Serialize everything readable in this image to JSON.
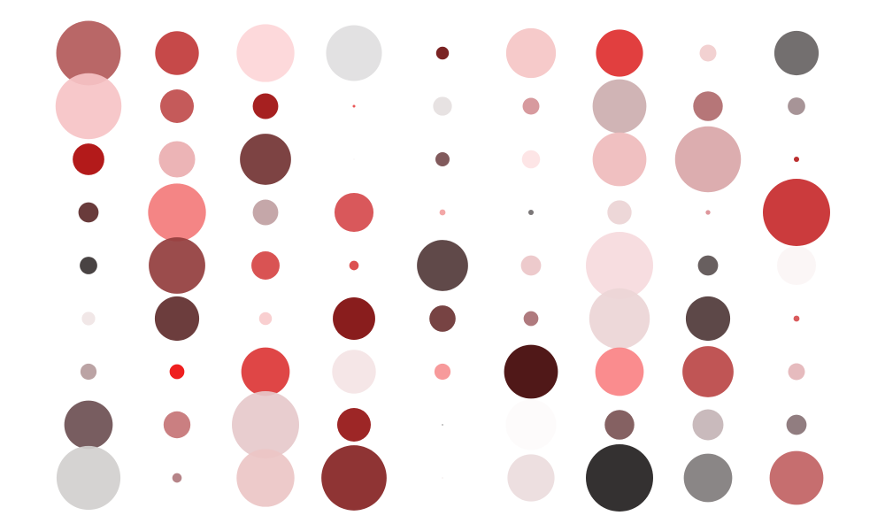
{
  "chart_data": {
    "type": "scatter",
    "title": "",
    "xlabel": "",
    "ylabel": "",
    "grid": false,
    "legend": "none",
    "columns": 9,
    "rows": 9,
    "cells": [
      {
        "col": 1,
        "row": 1,
        "size": 0.96,
        "color": "#b35a5a"
      },
      {
        "col": 2,
        "row": 1,
        "size": 0.65,
        "color": "#c13a3a"
      },
      {
        "col": 3,
        "row": 1,
        "size": 0.86,
        "color": "#fdd6d8"
      },
      {
        "col": 4,
        "row": 1,
        "size": 0.83,
        "color": "#e0dedf"
      },
      {
        "col": 5,
        "row": 1,
        "size": 0.19,
        "color": "#6f1010"
      },
      {
        "col": 6,
        "row": 1,
        "size": 0.74,
        "color": "#f5c5c6"
      },
      {
        "col": 7,
        "row": 1,
        "size": 0.7,
        "color": "#de2f2f"
      },
      {
        "col": 8,
        "row": 1,
        "size": 0.25,
        "color": "#f1cdcd"
      },
      {
        "col": 9,
        "row": 1,
        "size": 0.66,
        "color": "#676363"
      },
      {
        "col": 1,
        "row": 2,
        "size": 0.98,
        "color": "#f6c3c5"
      },
      {
        "col": 2,
        "row": 2,
        "size": 0.5,
        "color": "#c04c4c"
      },
      {
        "col": 3,
        "row": 2,
        "size": 0.38,
        "color": "#9e0d0d"
      },
      {
        "col": 4,
        "row": 2,
        "size": 0.04,
        "color": "#e84848"
      },
      {
        "col": 5,
        "row": 2,
        "size": 0.28,
        "color": "#e5dfe0"
      },
      {
        "col": 6,
        "row": 2,
        "size": 0.25,
        "color": "#d49196"
      },
      {
        "col": 7,
        "row": 2,
        "size": 0.8,
        "color": "#ccaeaf"
      },
      {
        "col": 8,
        "row": 2,
        "size": 0.44,
        "color": "#b06a6d"
      },
      {
        "col": 9,
        "row": 2,
        "size": 0.26,
        "color": "#9f8b8e"
      },
      {
        "col": 1,
        "row": 3,
        "size": 0.47,
        "color": "#ad0606"
      },
      {
        "col": 2,
        "row": 3,
        "size": 0.54,
        "color": "#eaaeb0"
      },
      {
        "col": 3,
        "row": 3,
        "size": 0.76,
        "color": "#723333"
      },
      {
        "col": 4,
        "row": 3,
        "size": 0.02,
        "color": "#f6f2f2"
      },
      {
        "col": 5,
        "row": 3,
        "size": 0.21,
        "color": "#764c4e"
      },
      {
        "col": 6,
        "row": 3,
        "size": 0.27,
        "color": "#fde3e4"
      },
      {
        "col": 7,
        "row": 3,
        "size": 0.8,
        "color": "#efbbbc"
      },
      {
        "col": 8,
        "row": 3,
        "size": 0.98,
        "color": "#d9a6a8"
      },
      {
        "col": 9,
        "row": 3,
        "size": 0.08,
        "color": "#b51d1d"
      },
      {
        "col": 1,
        "row": 4,
        "size": 0.3,
        "color": "#5c2a2a"
      },
      {
        "col": 2,
        "row": 4,
        "size": 0.86,
        "color": "#f37b7b"
      },
      {
        "col": 3,
        "row": 4,
        "size": 0.38,
        "color": "#c09fa2"
      },
      {
        "col": 4,
        "row": 4,
        "size": 0.58,
        "color": "#d64a4d"
      },
      {
        "col": 5,
        "row": 4,
        "size": 0.09,
        "color": "#f2a0a0"
      },
      {
        "col": 6,
        "row": 4,
        "size": 0.08,
        "color": "#706b6c"
      },
      {
        "col": 7,
        "row": 4,
        "size": 0.36,
        "color": "#ebd4d5"
      },
      {
        "col": 8,
        "row": 4,
        "size": 0.07,
        "color": "#db8d92"
      },
      {
        "col": 9,
        "row": 4,
        "size": 1.0,
        "color": "#c72a2c"
      },
      {
        "col": 1,
        "row": 5,
        "size": 0.26,
        "color": "#393333"
      },
      {
        "col": 2,
        "row": 5,
        "size": 0.84,
        "color": "#933d3d"
      },
      {
        "col": 3,
        "row": 5,
        "size": 0.42,
        "color": "#d64444"
      },
      {
        "col": 4,
        "row": 5,
        "size": 0.14,
        "color": "#d94242"
      },
      {
        "col": 5,
        "row": 5,
        "size": 0.76,
        "color": "#53393a"
      },
      {
        "col": 6,
        "row": 5,
        "size": 0.3,
        "color": "#ebc6c8"
      },
      {
        "col": 7,
        "row": 5,
        "size": 1.0,
        "color": "#f6dadd"
      },
      {
        "col": 8,
        "row": 5,
        "size": 0.3,
        "color": "#5b5151"
      },
      {
        "col": 9,
        "row": 5,
        "size": 0.58,
        "color": "#fbf5f5"
      },
      {
        "col": 1,
        "row": 6,
        "size": 0.2,
        "color": "#f0e5e5"
      },
      {
        "col": 2,
        "row": 6,
        "size": 0.66,
        "color": "#5f2c2c"
      },
      {
        "col": 3,
        "row": 6,
        "size": 0.19,
        "color": "#f9cbcc"
      },
      {
        "col": 4,
        "row": 6,
        "size": 0.63,
        "color": "#7f0a0a"
      },
      {
        "col": 5,
        "row": 6,
        "size": 0.39,
        "color": "#6b3333"
      },
      {
        "col": 6,
        "row": 6,
        "size": 0.22,
        "color": "#a86f73"
      },
      {
        "col": 7,
        "row": 6,
        "size": 0.9,
        "color": "#ecd5d6"
      },
      {
        "col": 8,
        "row": 6,
        "size": 0.66,
        "color": "#4f3838"
      },
      {
        "col": 9,
        "row": 6,
        "size": 0.09,
        "color": "#d64d4f"
      },
      {
        "col": 1,
        "row": 7,
        "size": 0.24,
        "color": "#b59b9c"
      },
      {
        "col": 2,
        "row": 7,
        "size": 0.22,
        "color": "#ee0c0c"
      },
      {
        "col": 3,
        "row": 7,
        "size": 0.72,
        "color": "#dc3636"
      },
      {
        "col": 4,
        "row": 7,
        "size": 0.65,
        "color": "#f4e4e5"
      },
      {
        "col": 5,
        "row": 7,
        "size": 0.24,
        "color": "#f69193"
      },
      {
        "col": 6,
        "row": 7,
        "size": 0.8,
        "color": "#410404"
      },
      {
        "col": 7,
        "row": 7,
        "size": 0.72,
        "color": "#fa8284"
      },
      {
        "col": 8,
        "row": 7,
        "size": 0.76,
        "color": "#bb4646"
      },
      {
        "col": 9,
        "row": 7,
        "size": 0.25,
        "color": "#e4b5b8"
      },
      {
        "col": 1,
        "row": 8,
        "size": 0.72,
        "color": "#6c4f52"
      },
      {
        "col": 2,
        "row": 8,
        "size": 0.4,
        "color": "#c57476"
      },
      {
        "col": 3,
        "row": 8,
        "size": 1.0,
        "color": "#e6c9cb"
      },
      {
        "col": 4,
        "row": 8,
        "size": 0.5,
        "color": "#951313"
      },
      {
        "col": 5,
        "row": 8,
        "size": 0.01,
        "color": "#333333"
      },
      {
        "col": 6,
        "row": 8,
        "size": 0.75,
        "color": "#fdfbfb"
      },
      {
        "col": 7,
        "row": 8,
        "size": 0.44,
        "color": "#7b5455"
      },
      {
        "col": 8,
        "row": 8,
        "size": 0.46,
        "color": "#c4b4b6"
      },
      {
        "col": 9,
        "row": 8,
        "size": 0.3,
        "color": "#887275"
      },
      {
        "col": 1,
        "row": 9,
        "size": 0.95,
        "color": "#d1cfce"
      },
      {
        "col": 2,
        "row": 9,
        "size": 0.14,
        "color": "#b07a7e"
      },
      {
        "col": 3,
        "row": 9,
        "size": 0.86,
        "color": "#ecc5c6"
      },
      {
        "col": 4,
        "row": 9,
        "size": 0.97,
        "color": "#862323"
      },
      {
        "col": 5,
        "row": 9,
        "size": 0.01,
        "color": "#e8dada"
      },
      {
        "col": 6,
        "row": 9,
        "size": 0.7,
        "color": "#ecdcdd"
      },
      {
        "col": 7,
        "row": 9,
        "size": 1.0,
        "color": "#231f1f"
      },
      {
        "col": 8,
        "row": 9,
        "size": 0.72,
        "color": "#807c7c"
      },
      {
        "col": 9,
        "row": 9,
        "size": 0.8,
        "color": "#c16263"
      }
    ]
  }
}
